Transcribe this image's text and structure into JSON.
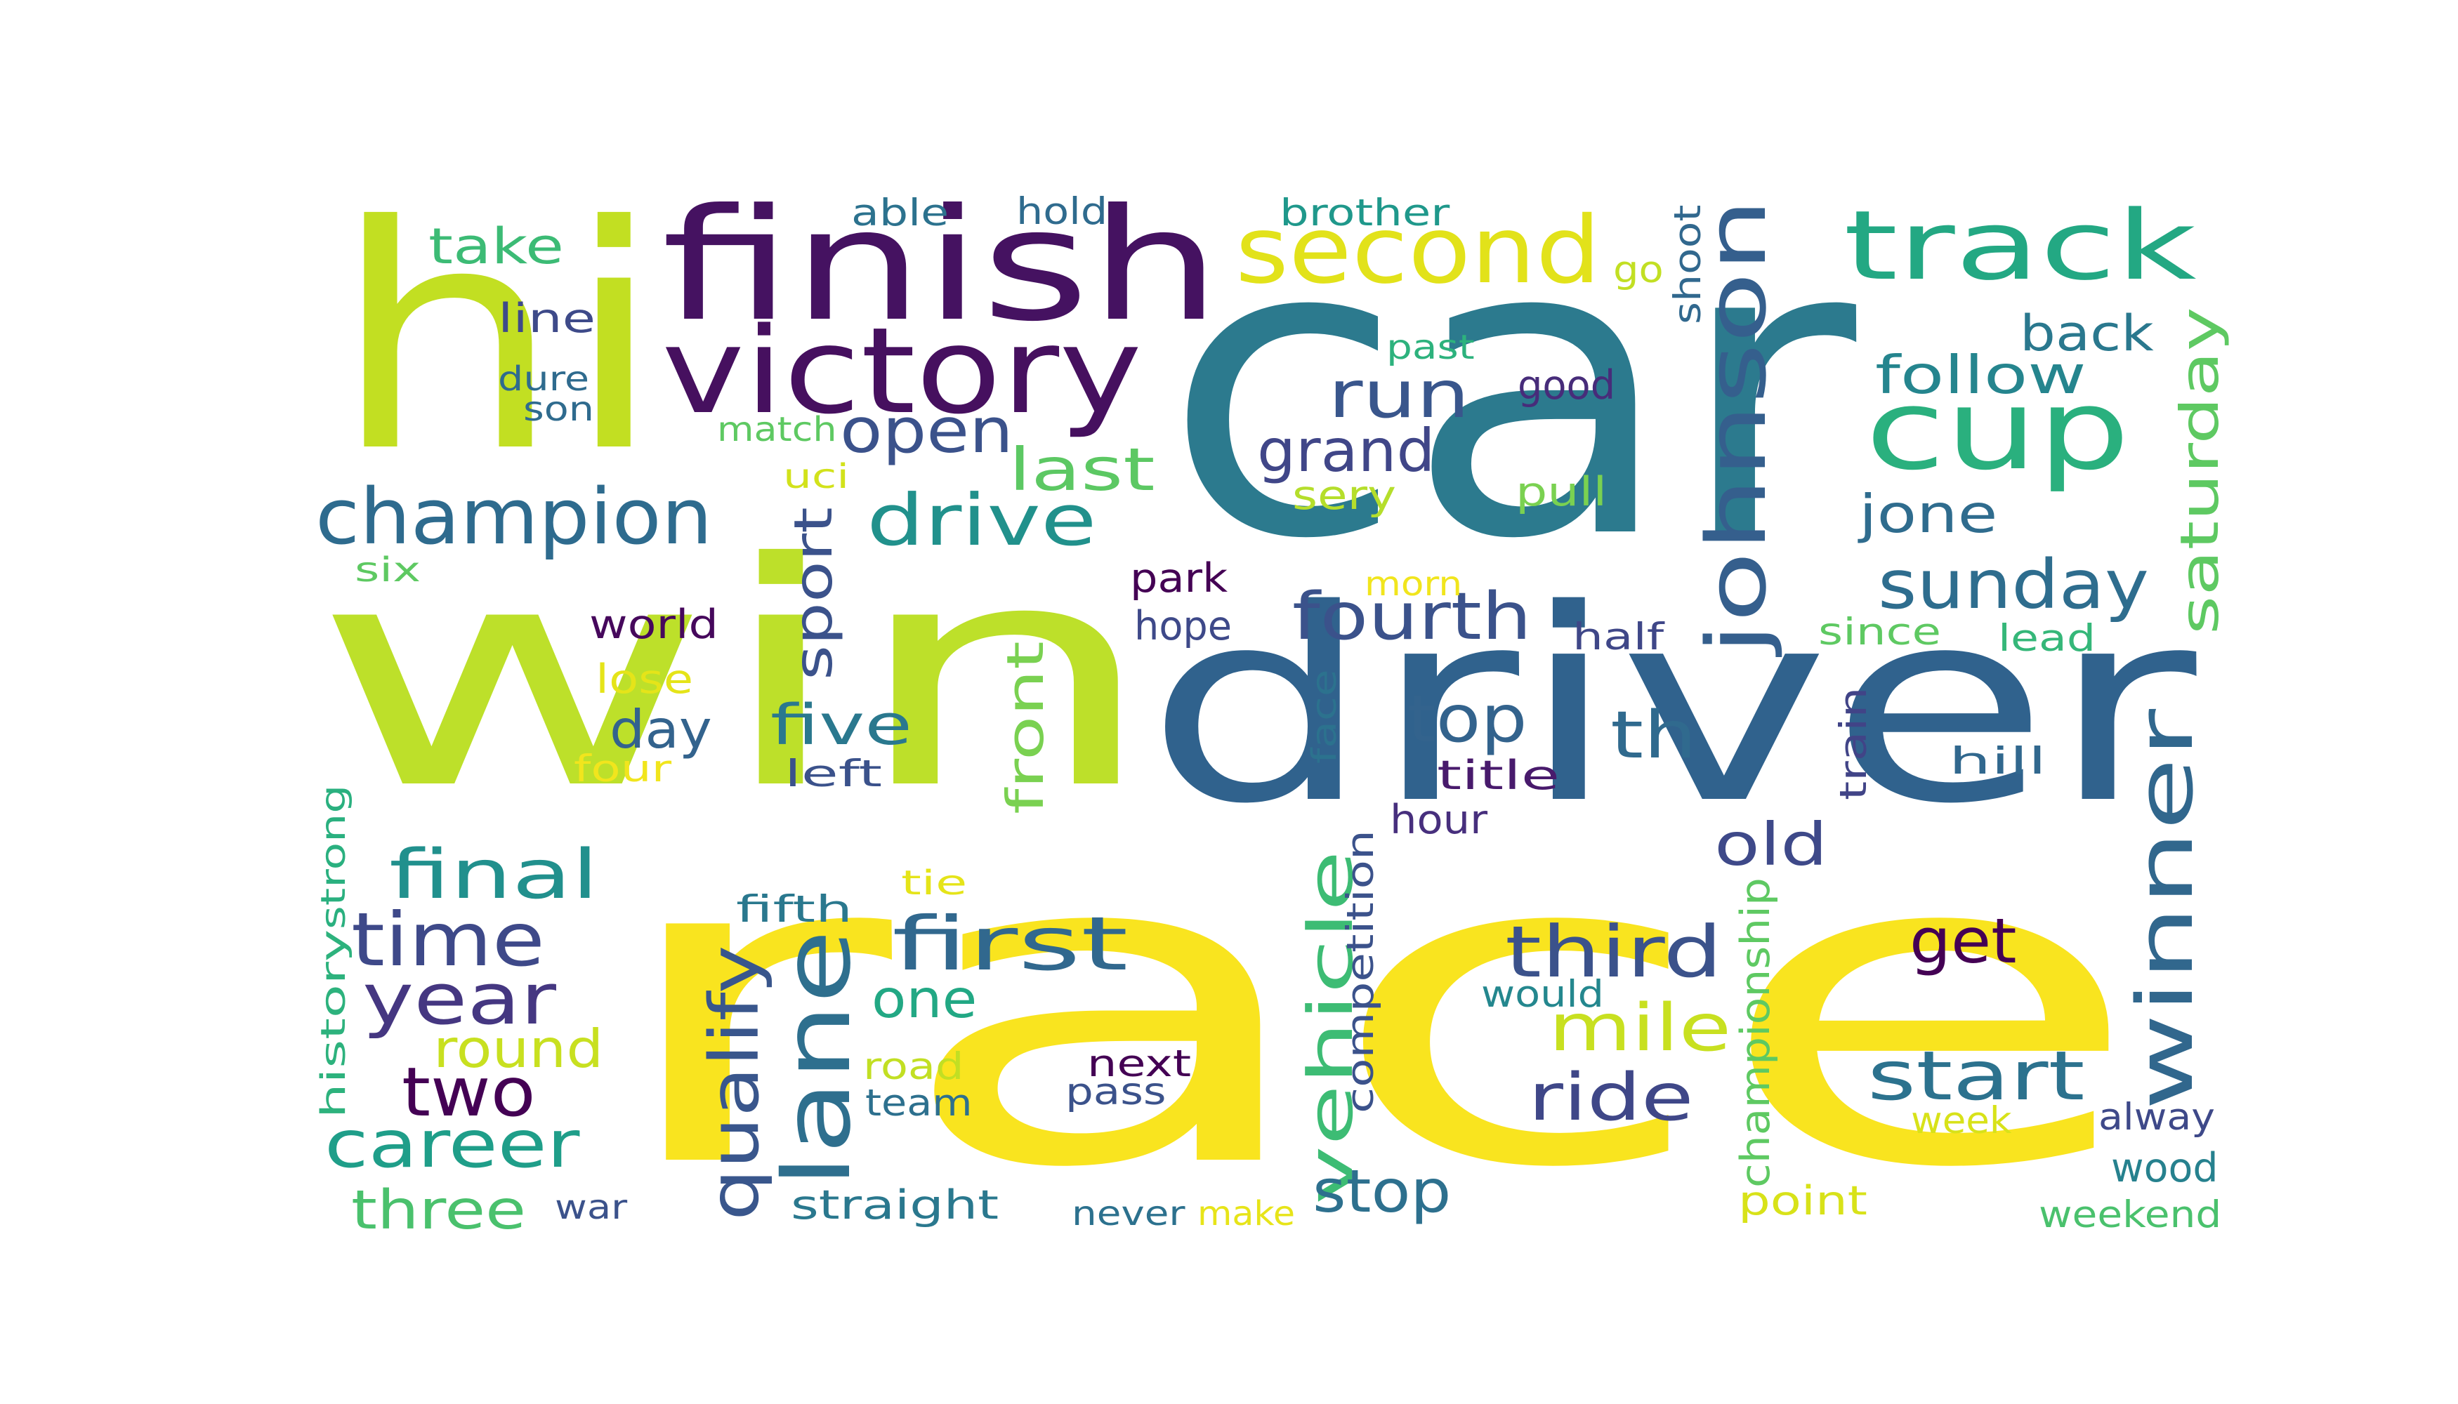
{
  "wordcloud": {
    "words": [
      {
        "text": "car",
        "color": "#2c7a8e"
      },
      {
        "text": "win",
        "color": "#bde02a"
      },
      {
        "text": "race",
        "color": "#f9e41f"
      },
      {
        "text": "driver",
        "color": "#30628d"
      },
      {
        "text": "hi",
        "color": "#c2df22"
      },
      {
        "text": "finish",
        "color": "#451261"
      },
      {
        "text": "victory",
        "color": "#46105f"
      },
      {
        "text": "second",
        "color": "#e2e21a"
      },
      {
        "text": "track",
        "color": "#23a883"
      },
      {
        "text": "cup",
        "color": "#2ab07e"
      },
      {
        "text": "johnson",
        "color": "#355f8d"
      },
      {
        "text": "winner",
        "color": "#31678d"
      },
      {
        "text": "lane",
        "color": "#2e6f8e"
      },
      {
        "text": "champion",
        "color": "#2e6b8e"
      },
      {
        "text": "drive",
        "color": "#21918c"
      },
      {
        "text": "open",
        "color": "#3b528b"
      },
      {
        "text": "last",
        "color": "#5cc863"
      },
      {
        "text": "run",
        "color": "#39568c"
      },
      {
        "text": "grand",
        "color": "#404688"
      },
      {
        "text": "follow",
        "color": "#25858e"
      },
      {
        "text": "back",
        "color": "#2a788e"
      },
      {
        "text": "saturday",
        "color": "#5ec962"
      },
      {
        "text": "jone",
        "color": "#2f6c8e"
      },
      {
        "text": "sunday",
        "color": "#2e6d8e"
      },
      {
        "text": "fourth",
        "color": "#3b528b"
      },
      {
        "text": "top",
        "color": "#33638d"
      },
      {
        "text": "th",
        "color": "#306a8e"
      },
      {
        "text": "first",
        "color": "#31688e"
      },
      {
        "text": "final",
        "color": "#21908d"
      },
      {
        "text": "time",
        "color": "#3e4989"
      },
      {
        "text": "year",
        "color": "#453781"
      },
      {
        "text": "two",
        "color": "#440154"
      },
      {
        "text": "career",
        "color": "#1f9e89"
      },
      {
        "text": "three",
        "color": "#4ac16d"
      },
      {
        "text": "round",
        "color": "#c8e020"
      },
      {
        "text": "qualify",
        "color": "#39568c"
      },
      {
        "text": "one",
        "color": "#22a884"
      },
      {
        "text": "vehicle",
        "color": "#3dbc74"
      },
      {
        "text": "third",
        "color": "#3b528b"
      },
      {
        "text": "mile",
        "color": "#c8e020"
      },
      {
        "text": "ride",
        "color": "#3f4788"
      },
      {
        "text": "get",
        "color": "#440154"
      },
      {
        "text": "start",
        "color": "#2c728e"
      },
      {
        "text": "old",
        "color": "#3e4989"
      },
      {
        "text": "stop",
        "color": "#2d708e"
      },
      {
        "text": "five",
        "color": "#2a788e"
      },
      {
        "text": "day",
        "color": "#33638d"
      },
      {
        "text": "front",
        "color": "#7ad151"
      },
      {
        "text": "sport",
        "color": "#3b528b"
      },
      {
        "text": "take",
        "color": "#3cbb75"
      },
      {
        "text": "line",
        "color": "#3e4a89"
      },
      {
        "text": "dure",
        "color": "#2f6b8e"
      },
      {
        "text": "son",
        "color": "#2f6b8e"
      },
      {
        "text": "match",
        "color": "#5ec962"
      },
      {
        "text": "uci",
        "color": "#d2e21b"
      },
      {
        "text": "able",
        "color": "#2c728e"
      },
      {
        "text": "hold",
        "color": "#2f6b8e"
      },
      {
        "text": "brother",
        "color": "#1f988b"
      },
      {
        "text": "go",
        "color": "#c2df23"
      },
      {
        "text": "shoot",
        "color": "#31688e"
      },
      {
        "text": "past",
        "color": "#2db27d"
      },
      {
        "text": "good",
        "color": "#472c7a"
      },
      {
        "text": "sery",
        "color": "#b5de2b"
      },
      {
        "text": "pull",
        "color": "#7ad151"
      },
      {
        "text": "six",
        "color": "#5ec962"
      },
      {
        "text": "world",
        "color": "#46085c"
      },
      {
        "text": "lose",
        "color": "#e5e419"
      },
      {
        "text": "four",
        "color": "#f1e51d"
      },
      {
        "text": "left",
        "color": "#3b528b"
      },
      {
        "text": "park",
        "color": "#440154"
      },
      {
        "text": "hope",
        "color": "#3e4989"
      },
      {
        "text": "morn",
        "color": "#f1e51d"
      },
      {
        "text": "half",
        "color": "#3f4788"
      },
      {
        "text": "since",
        "color": "#5ec962"
      },
      {
        "text": "lead",
        "color": "#35b779"
      },
      {
        "text": "face",
        "color": "#2c728e"
      },
      {
        "text": "title",
        "color": "#481a6c"
      },
      {
        "text": "hour",
        "color": "#472f7d"
      },
      {
        "text": "train",
        "color": "#414487"
      },
      {
        "text": "hill",
        "color": "#31688e"
      },
      {
        "text": "history",
        "color": "#2db27d"
      },
      {
        "text": "strong",
        "color": "#2ab07f"
      },
      {
        "text": "tie",
        "color": "#e5e419"
      },
      {
        "text": "fifth",
        "color": "#2a788e"
      },
      {
        "text": "competition",
        "color": "#3b528b"
      },
      {
        "text": "championship",
        "color": "#5ec962"
      },
      {
        "text": "would",
        "color": "#24878e"
      },
      {
        "text": "road",
        "color": "#c2df23"
      },
      {
        "text": "team",
        "color": "#2d708e"
      },
      {
        "text": "next",
        "color": "#440154"
      },
      {
        "text": "pass",
        "color": "#3b528b"
      },
      {
        "text": "week",
        "color": "#d8e219"
      },
      {
        "text": "alway",
        "color": "#3e4989"
      },
      {
        "text": "wood",
        "color": "#26818e"
      },
      {
        "text": "war",
        "color": "#3b528b"
      },
      {
        "text": "straight",
        "color": "#2a788e"
      },
      {
        "text": "never",
        "color": "#2c718e"
      },
      {
        "text": "make",
        "color": "#e7e419"
      },
      {
        "text": "point",
        "color": "#d8e219"
      },
      {
        "text": "weekend",
        "color": "#4ac16d"
      }
    ]
  }
}
